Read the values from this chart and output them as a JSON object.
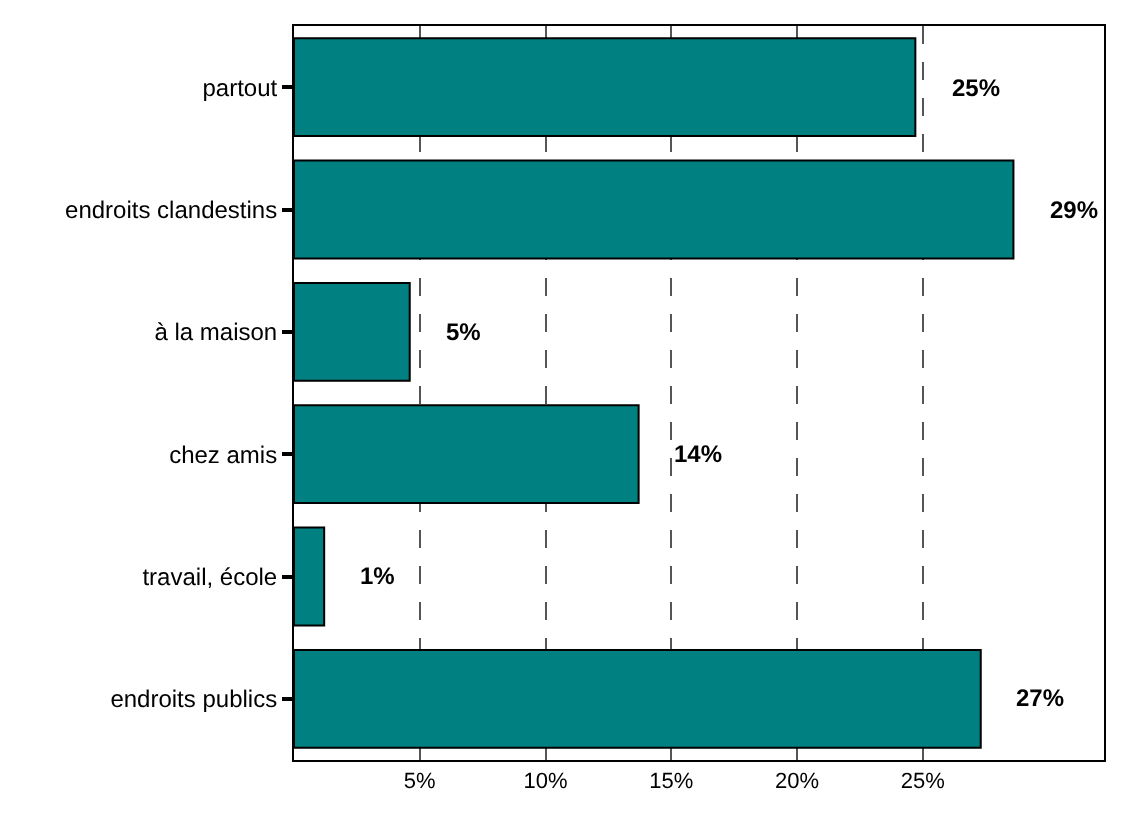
{
  "chart_data": {
    "type": "bar",
    "orientation": "horizontal",
    "categories": [
      "partout",
      "endroits clandestins",
      "à la maison",
      "chez amis",
      "travail, école",
      "endroits publics"
    ],
    "values": [
      24.7,
      28.6,
      4.6,
      13.7,
      1.2,
      27.3
    ],
    "value_labels": [
      "25%",
      "29%",
      "5%",
      "14%",
      "1%",
      "27%"
    ],
    "color": "#008080",
    "xlim": [
      0,
      32.2
    ],
    "xticks": [
      {
        "value": 5,
        "label": "5%"
      },
      {
        "value": 10,
        "label": "10%"
      },
      {
        "value": 15,
        "label": "15%"
      },
      {
        "value": 20,
        "label": "20%"
      },
      {
        "value": 25,
        "label": "25%"
      }
    ],
    "grid": "x",
    "legend": false
  }
}
